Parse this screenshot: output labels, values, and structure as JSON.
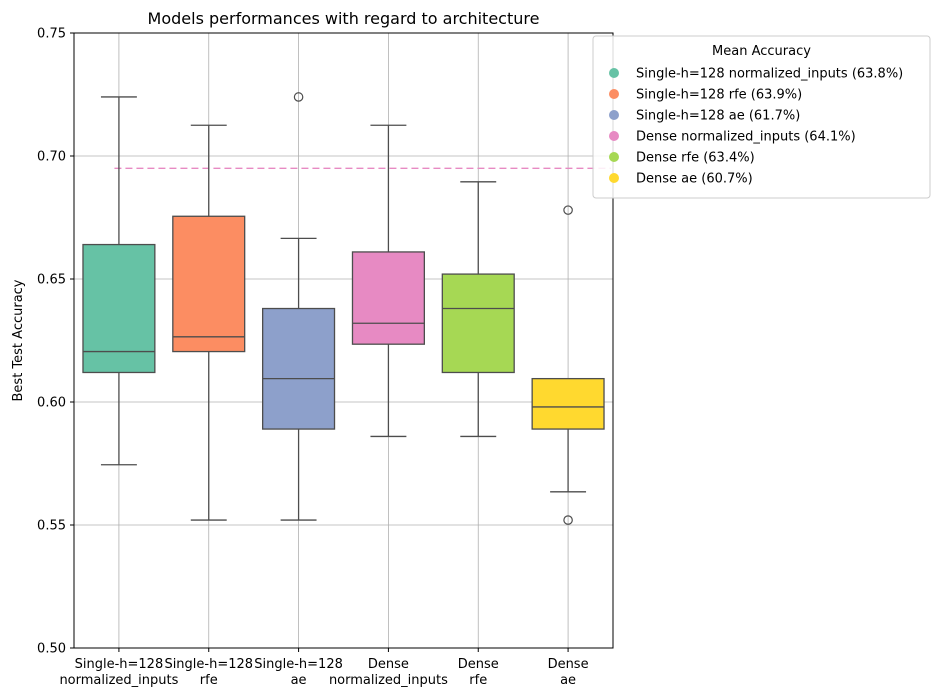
{
  "chart_data": {
    "type": "box",
    "title": "Models performances with regard to architecture",
    "xlabel": "",
    "ylabel": "Best Test Accuracy",
    "ylim": [
      0.5,
      0.75
    ],
    "yticks": [
      "0.50",
      "0.55",
      "0.60",
      "0.65",
      "0.70",
      "0.75"
    ],
    "ytick_values": [
      0.5,
      0.55,
      0.6,
      0.65,
      0.7,
      0.75
    ],
    "grid": true,
    "reference_line": {
      "y": 0.695,
      "color": "#e78ac3",
      "style": "dashed"
    },
    "legend": {
      "title": "Mean Accuracy",
      "placement": "outside-top-right",
      "entries": [
        "Single-h=128 normalized_inputs (63.8%)",
        "Single-h=128 rfe (63.9%)",
        "Single-h=128 ae (61.7%)",
        "Dense normalized_inputs (64.1%)",
        "Dense rfe (63.4%)",
        "Dense ae (60.7%)"
      ]
    },
    "categories": [
      {
        "line1": "Single-h=128",
        "line2": "normalized_inputs"
      },
      {
        "line1": "Single-h=128",
        "line2": "rfe"
      },
      {
        "line1": "Single-h=128",
        "line2": "ae"
      },
      {
        "line1": "Dense",
        "line2": "normalized_inputs"
      },
      {
        "line1": "Dense",
        "line2": "rfe"
      },
      {
        "line1": "Dense",
        "line2": "ae"
      }
    ],
    "boxes": [
      {
        "whisker_low": 0.5745,
        "q1": 0.612,
        "median": 0.6205,
        "q3": 0.664,
        "whisker_high": 0.724,
        "outliers": [],
        "color": "#66c2a5"
      },
      {
        "whisker_low": 0.552,
        "q1": 0.6205,
        "median": 0.6265,
        "q3": 0.6755,
        "whisker_high": 0.7125,
        "outliers": [],
        "color": "#fc8d62"
      },
      {
        "whisker_low": 0.552,
        "q1": 0.589,
        "median": 0.6095,
        "q3": 0.638,
        "whisker_high": 0.6665,
        "outliers": [
          0.724
        ],
        "color": "#8da0cb"
      },
      {
        "whisker_low": 0.586,
        "q1": 0.6235,
        "median": 0.632,
        "q3": 0.661,
        "whisker_high": 0.7125,
        "outliers": [],
        "color": "#e78ac3"
      },
      {
        "whisker_low": 0.586,
        "q1": 0.612,
        "median": 0.638,
        "q3": 0.652,
        "whisker_high": 0.6895,
        "outliers": [],
        "color": "#a6d854"
      },
      {
        "whisker_low": 0.5635,
        "q1": 0.589,
        "median": 0.598,
        "q3": 0.6095,
        "whisker_high": 0.6095,
        "outliers": [
          0.678,
          0.552
        ],
        "color": "#ffd92f"
      }
    ]
  }
}
